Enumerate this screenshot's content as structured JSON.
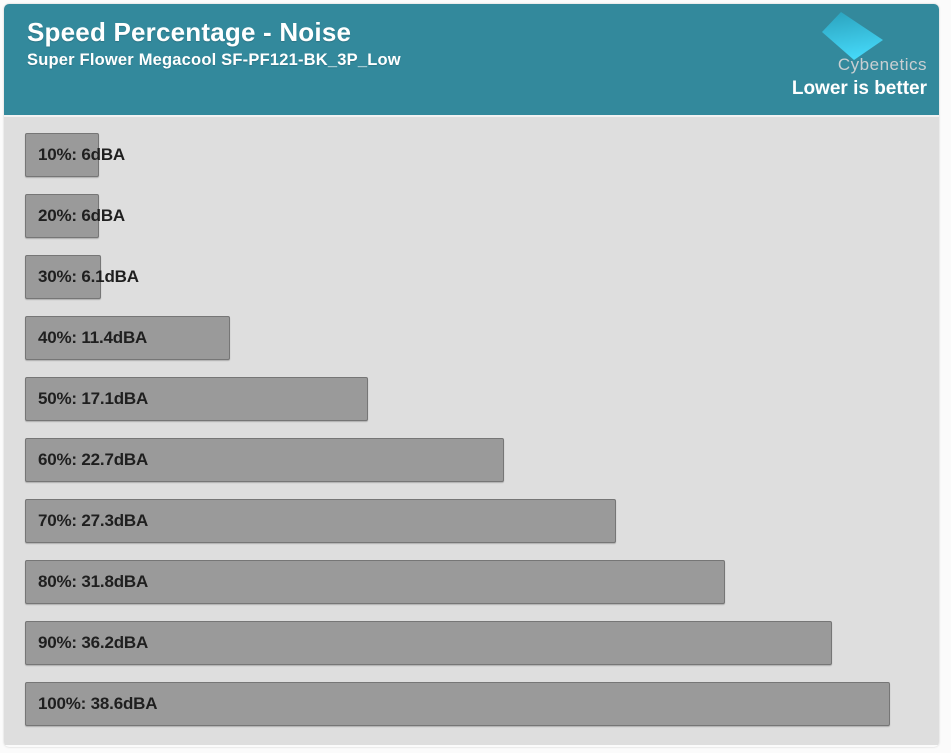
{
  "header": {
    "title": "Speed Percentage - Noise",
    "subtitle": "Super Flower Megacool SF-PF121-BK_3P_Low",
    "brand": "Cybenetics",
    "note": "Lower is better"
  },
  "colors": {
    "header_teal": "#33899C",
    "plot_background": "#DEDEDE",
    "bar_fill": "#9A9A9A",
    "bar_border": "#767676",
    "bar_label_text": "#1F1F1F",
    "header_text": "#FFFFFF",
    "brand_text": "#C9CFD2",
    "logo_top": "#2BA3BE",
    "logo_bottom": "#45D8F8"
  },
  "chart_data": {
    "type": "bar",
    "orientation": "horizontal",
    "title": "Speed Percentage - Noise",
    "subtitle": "Super Flower Megacool SF-PF121-BK_3P_Low",
    "annotation": "Lower is better",
    "unit": "dBA",
    "axis_visible": false,
    "grid": false,
    "legend": false,
    "categories": [
      "10%",
      "20%",
      "30%",
      "40%",
      "50%",
      "60%",
      "70%",
      "80%",
      "90%",
      "100%"
    ],
    "values": [
      6,
      6,
      6.1,
      11.4,
      17.1,
      22.7,
      27.3,
      31.8,
      36.2,
      38.6
    ],
    "labels": [
      "10%: 6dBA",
      "20%: 6dBA",
      "30%: 6.1dBA",
      "40%: 11.4dBA",
      "50%: 17.1dBA",
      "60%: 22.7dBA",
      "70%: 27.3dBA",
      "80%: 31.8dBA",
      "90%: 36.2dBA",
      "100%: 38.6dBA"
    ]
  }
}
